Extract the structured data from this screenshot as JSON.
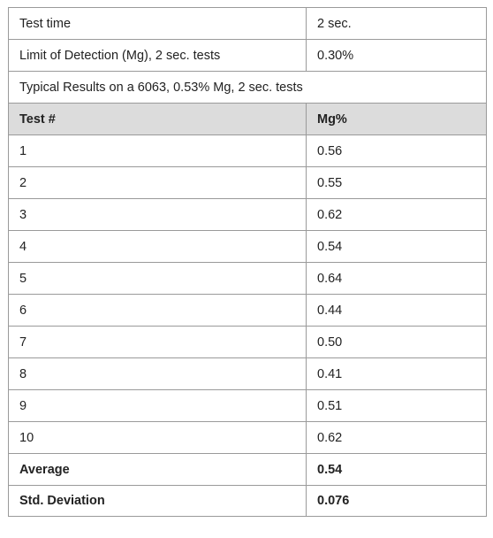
{
  "specs": [
    {
      "label": "Test time",
      "value": "2 sec."
    },
    {
      "label": "Limit of Detection (Mg), 2 sec. tests",
      "value": "0.30%"
    }
  ],
  "caption": "Typical Results on a 6063,  0.53% Mg, 2 sec. tests",
  "columns": {
    "test": "Test #",
    "mg": "Mg%"
  },
  "rows": [
    {
      "test": "1",
      "mg": "0.56"
    },
    {
      "test": "2",
      "mg": "0.55"
    },
    {
      "test": "3",
      "mg": "0.62"
    },
    {
      "test": "4",
      "mg": "0.54"
    },
    {
      "test": "5",
      "mg": "0.64"
    },
    {
      "test": "6",
      "mg": "0.44"
    },
    {
      "test": "7",
      "mg": "0.50"
    },
    {
      "test": "8",
      "mg": "0.41"
    },
    {
      "test": "9",
      "mg": "0.51"
    },
    {
      "test": "10",
      "mg": "0.62"
    }
  ],
  "summary": [
    {
      "label": "Average",
      "value": "0.54"
    },
    {
      "label": "Std. Deviation",
      "value": "0.076"
    }
  ],
  "colors": {
    "header_bg": "#dcdcdc",
    "border": "#9a9a9a",
    "text": "#222222"
  }
}
